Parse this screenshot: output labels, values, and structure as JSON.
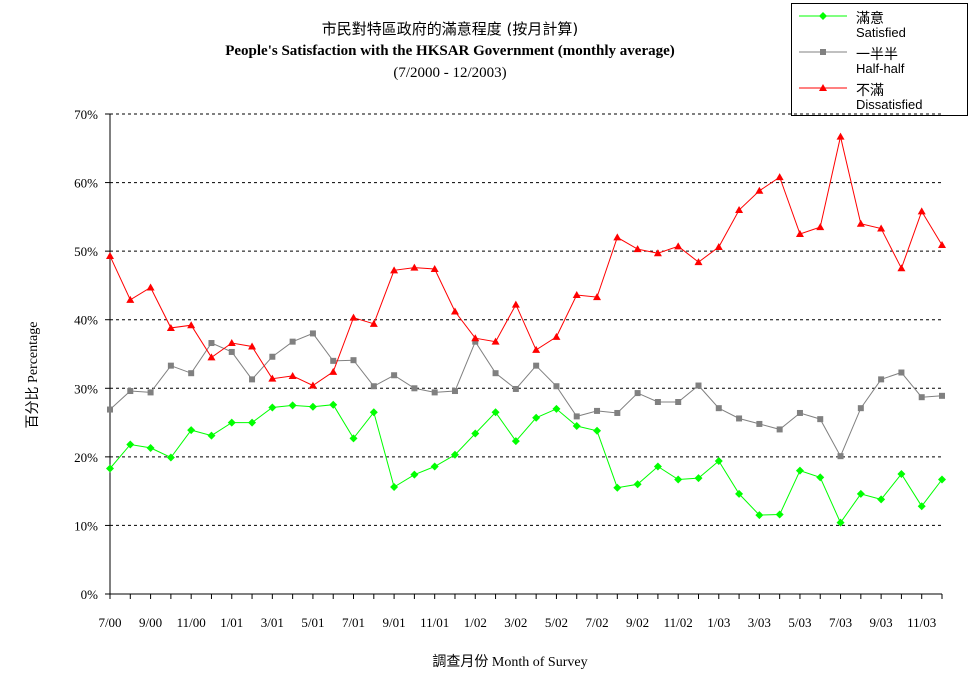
{
  "chart_data": {
    "type": "line",
    "title_zh": "市民對特區政府的滿意程度 (按月計算)",
    "title": "People's Satisfaction with the HKSAR Government (monthly average)",
    "subtitle": "(7/2000 - 12/2003)",
    "xlabel": "調查月份 Month of Survey",
    "ylabel": "百分比 Percentage",
    "ylim": [
      0,
      70
    ],
    "yticks": [
      "0%",
      "10%",
      "20%",
      "30%",
      "40%",
      "50%",
      "60%",
      "70%"
    ],
    "grid": "horizontal dashed",
    "legend_position": "top-right",
    "x": [
      "7/00",
      "8/00",
      "9/00",
      "10/00",
      "11/00",
      "12/00",
      "1/01",
      "2/01",
      "3/01",
      "4/01",
      "5/01",
      "6/01",
      "7/01",
      "8/01",
      "9/01",
      "10/01",
      "11/01",
      "12/01",
      "1/02",
      "2/02",
      "3/02",
      "4/02",
      "5/02",
      "6/02",
      "7/02",
      "8/02",
      "9/02",
      "10/02",
      "11/02",
      "12/02",
      "1/03",
      "2/03",
      "3/03",
      "4/03",
      "5/03",
      "6/03",
      "7/03",
      "8/03",
      "9/03",
      "10/03",
      "11/03",
      "12/03"
    ],
    "xtick_labels": [
      "7/00",
      "9/00",
      "11/00",
      "1/01",
      "3/01",
      "5/01",
      "7/01",
      "9/01",
      "11/01",
      "1/02",
      "3/02",
      "5/02",
      "7/02",
      "9/02",
      "11/02",
      "1/03",
      "3/03",
      "5/03",
      "7/03",
      "9/03",
      "11/03"
    ],
    "series": [
      {
        "name_zh": "滿意",
        "name": "Satisfied",
        "color": "#00ff00",
        "marker": "diamond",
        "values": [
          18.3,
          21.8,
          21.3,
          19.9,
          23.9,
          23.1,
          25.0,
          25.0,
          27.2,
          27.5,
          27.3,
          27.6,
          22.7,
          26.5,
          15.6,
          17.4,
          18.6,
          20.3,
          23.4,
          26.5,
          22.3,
          25.7,
          27.0,
          24.5,
          23.8,
          15.5,
          16.0,
          18.6,
          16.7,
          16.9,
          19.4,
          14.6,
          11.5,
          11.6,
          18.0,
          17.0,
          10.4,
          14.6,
          13.8,
          17.5,
          12.8,
          16.7
        ]
      },
      {
        "name_zh": "一半半",
        "name": "Half-half",
        "color": "#808080",
        "marker": "square",
        "values": [
          26.9,
          29.6,
          29.4,
          33.3,
          32.2,
          36.6,
          35.3,
          31.3,
          34.6,
          36.8,
          38.0,
          34.0,
          34.1,
          30.3,
          31.9,
          30.0,
          29.4,
          29.6,
          36.8,
          32.2,
          29.9,
          33.3,
          30.3,
          25.9,
          26.7,
          26.4,
          29.3,
          28.0,
          28.0,
          30.4,
          27.1,
          25.6,
          24.8,
          24.0,
          26.4,
          25.5,
          20.1,
          27.1,
          31.3,
          32.3,
          28.7,
          28.9
        ]
      },
      {
        "name_zh": "不滿",
        "name": "Dissatisfied",
        "color": "#ff0000",
        "marker": "triangle",
        "values": [
          49.3,
          42.9,
          44.7,
          38.8,
          39.2,
          34.5,
          36.6,
          36.1,
          31.4,
          31.8,
          30.4,
          32.4,
          40.3,
          39.4,
          47.2,
          47.6,
          47.4,
          41.2,
          37.3,
          36.8,
          42.2,
          35.6,
          37.5,
          43.6,
          43.3,
          52.0,
          50.3,
          49.7,
          50.7,
          48.4,
          50.6,
          56.0,
          58.8,
          60.8,
          52.5,
          53.5,
          66.7,
          54.0,
          53.3,
          47.5,
          55.8,
          50.9
        ]
      }
    ]
  }
}
